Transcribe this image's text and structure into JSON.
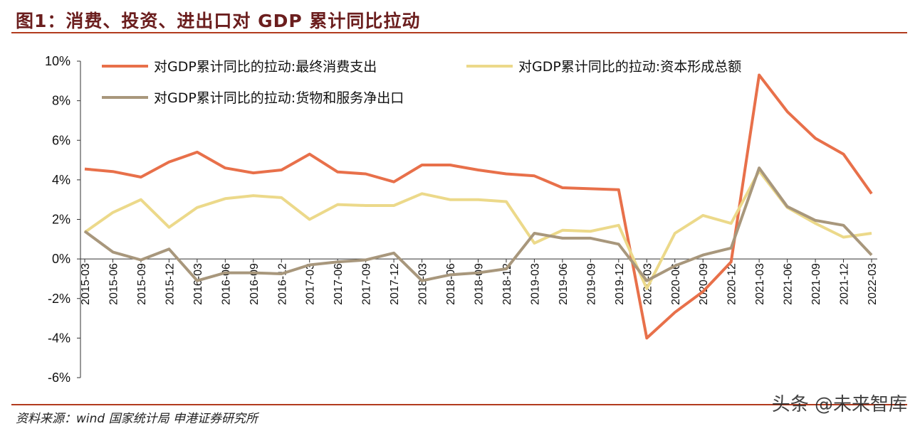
{
  "title": "图1：消费、投资、进出口对 GDP 累计同比拉动",
  "source": "资料来源：wind 国家统计局 申港证券研究所",
  "watermark": "头条 @未来智库",
  "chart_data": {
    "type": "line",
    "title": "",
    "xlabel": "",
    "ylabel": "",
    "ylim": [
      -6,
      10
    ],
    "y_ticks": [
      "-6%",
      "-4%",
      "-2%",
      "0%",
      "2%",
      "4%",
      "6%",
      "8%",
      "10%"
    ],
    "y_tick_values": [
      -6,
      -4,
      -2,
      0,
      2,
      4,
      6,
      8,
      10
    ],
    "grid": false,
    "legend_position": "top",
    "categories": [
      "2015-03",
      "2015-06",
      "2015-09",
      "2015-12",
      "2016-03",
      "2016-06",
      "2016-09",
      "2016-12",
      "2017-03",
      "2017-06",
      "2017-09",
      "2017-12",
      "2018-03",
      "2018-06",
      "2018-09",
      "2018-12",
      "2019-03",
      "2019-06",
      "2019-09",
      "2019-12",
      "2020-03",
      "2020-06",
      "2020-09",
      "2020-12",
      "2021-03",
      "2021-06",
      "2021-09",
      "2021-12",
      "2022-03"
    ],
    "series": [
      {
        "name": "对GDP累计同比的拉动:最终消费支出",
        "color": "#e8704a",
        "values": [
          4.55,
          4.42,
          4.14,
          4.9,
          5.4,
          4.6,
          4.35,
          4.5,
          5.3,
          4.4,
          4.3,
          3.9,
          4.75,
          4.75,
          4.5,
          4.3,
          4.2,
          3.6,
          3.55,
          3.5,
          -4.0,
          -2.7,
          -1.65,
          -0.15,
          9.3,
          7.45,
          6.1,
          5.3,
          3.3
        ]
      },
      {
        "name": "对GDP累计同比的拉动:资本形成总额",
        "color": "#ecd98a",
        "values": [
          1.35,
          2.35,
          3.0,
          1.6,
          2.6,
          3.05,
          3.2,
          3.1,
          2.0,
          2.75,
          2.7,
          2.7,
          3.3,
          3.0,
          3.0,
          2.9,
          0.8,
          1.45,
          1.4,
          1.7,
          -1.5,
          1.3,
          2.2,
          1.8,
          4.45,
          2.6,
          1.8,
          1.1,
          1.3
        ]
      },
      {
        "name": "对GDP累计同比的拉动:货物和服务净出口",
        "color": "#a8977c",
        "values": [
          1.4,
          0.35,
          -0.05,
          0.5,
          -1.1,
          -0.7,
          -0.7,
          -0.75,
          -0.3,
          -0.15,
          -0.05,
          0.3,
          -1.1,
          -0.8,
          -0.7,
          -0.5,
          1.3,
          1.05,
          1.05,
          0.75,
          -1.1,
          -0.35,
          0.2,
          0.55,
          4.6,
          2.65,
          1.95,
          1.7,
          0.2
        ]
      }
    ]
  }
}
